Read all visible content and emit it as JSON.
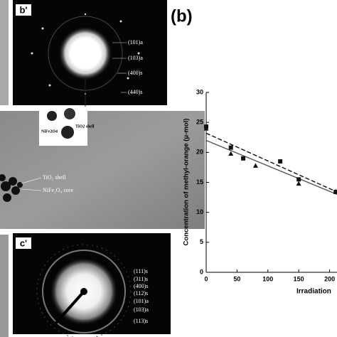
{
  "panels": {
    "b_prime": {
      "label": "b'",
      "annotations": [
        "(101)a",
        "(103)a",
        "(400)s",
        "(440)s"
      ]
    },
    "inset": {
      "annotations": [
        "NiFe2O4",
        "TiO2 shell"
      ]
    },
    "middle": {
      "annotations": [
        "TiO₂ shell",
        "NiFe₂O₄ core"
      ]
    },
    "c_prime": {
      "label": "c'",
      "annotations": [
        "(111)s",
        "(311)s",
        "(400)s",
        "(112)s",
        "(101)a",
        "(103)a",
        "(113)s"
      ]
    }
  },
  "chart_data": {
    "type": "scatter",
    "panel_label": "(b)",
    "y_label": "Concentration of methyl-orange (μ-mol)",
    "x_label": "Irradiation",
    "xlim": [
      0,
      212
    ],
    "ylim": [
      0,
      30
    ],
    "xticks": [
      0,
      50,
      100,
      150,
      200
    ],
    "yticks": [
      0,
      5,
      10,
      15,
      20,
      25,
      30
    ],
    "series": [
      {
        "marker": "square",
        "color": "#111111",
        "x": [
          0,
          40,
          60,
          120,
          150,
          210
        ],
        "values": [
          24.3,
          20.8,
          19,
          18.5,
          15.5,
          13.4
        ]
      },
      {
        "marker": "triangle",
        "color": "#111111",
        "x": [
          0,
          40,
          80,
          150,
          210
        ],
        "values": [
          24,
          19.8,
          17.8,
          14.8,
          13.5
        ]
      }
    ],
    "fits": [
      {
        "style": "dashed",
        "color": "#111111",
        "x": [
          0,
          212
        ],
        "values": [
          23.2,
          13.4
        ]
      },
      {
        "style": "solid",
        "color": "#555555",
        "x": [
          0,
          212
        ],
        "values": [
          22,
          13
        ]
      }
    ]
  }
}
